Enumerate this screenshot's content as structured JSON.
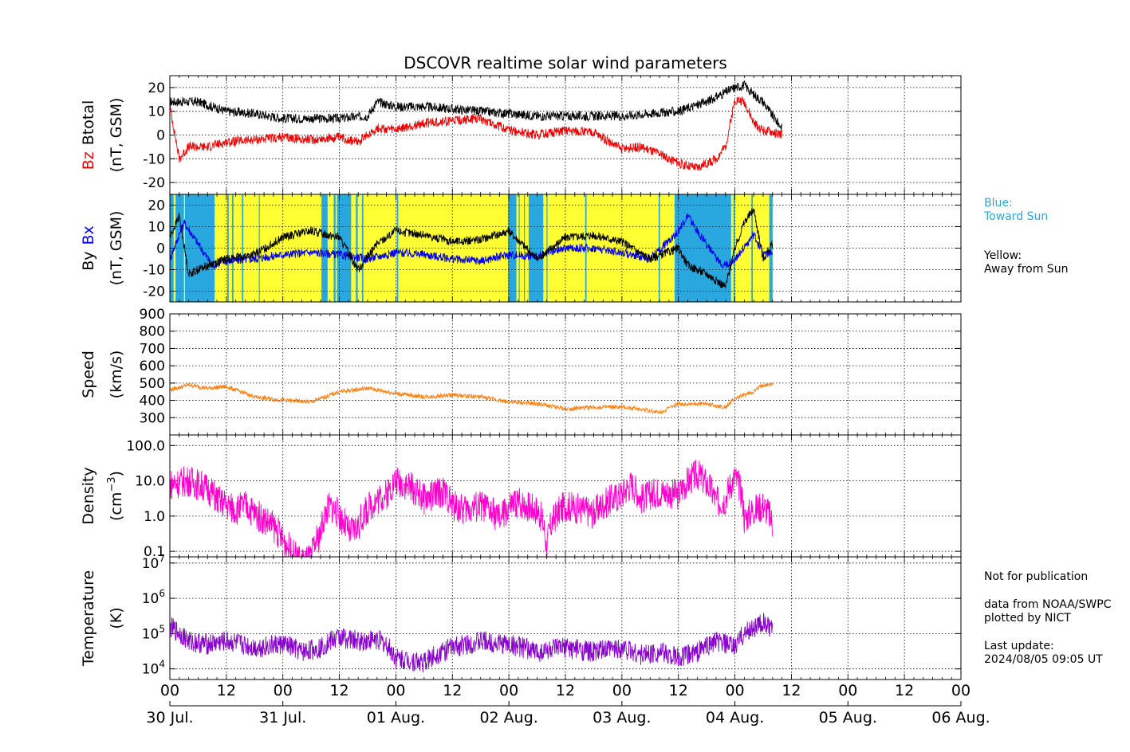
{
  "title": "DSCOVR realtime solar wind parameters",
  "x_axis": {
    "start": "2024-07-30T00:00Z",
    "end": "2024-08-06T00:00Z",
    "hour_labels": [
      "00",
      "12",
      "00",
      "12",
      "00",
      "12",
      "00",
      "12",
      "00",
      "12",
      "00",
      "12",
      "00",
      "12",
      "00"
    ],
    "date_labels": [
      "30 Jul.",
      "31 Jul.",
      "01 Aug.",
      "02 Aug.",
      "03 Aug.",
      "04 Aug.",
      "05 Aug.",
      "06 Aug."
    ]
  },
  "side_text": {
    "legend_blue": "Blue:\nToward Sun",
    "legend_yellow": "Yellow:\nAway from Sun",
    "note_publication": "Not for publication",
    "note_source": "data from NOAA/SWPC\nplotted by NICT",
    "note_update": "Last update:\n2024/08/05 09:05 UT"
  },
  "colors": {
    "bz": "#ee0000",
    "btotal": "#000000",
    "bx": "#0000ee",
    "by": "#000000",
    "speed": "#ff7f0e",
    "density": "#ff00cc",
    "temperature": "#8800cc",
    "toward_sun": "#29a8e0",
    "away_from_sun": "#ffff33"
  },
  "chart_data": [
    {
      "type": "line",
      "panel": "magnetic_field_total",
      "ylabel_parts": [
        "Bz",
        "Btotal",
        "(nT, GSM)"
      ],
      "ylim": [
        -25,
        25
      ],
      "yticks": [
        -20,
        -10,
        0,
        10,
        20
      ],
      "grid": true,
      "series": [
        {
          "name": "Btotal",
          "x_hours": [
            0,
            6,
            12,
            18,
            24,
            30,
            36,
            42,
            44,
            48,
            54,
            60,
            66,
            72,
            78,
            84,
            90,
            96,
            102,
            108,
            114,
            118,
            120,
            122,
            124,
            126,
            128,
            130
          ],
          "values": [
            14,
            14,
            10,
            9,
            7,
            7,
            7,
            8,
            14,
            12,
            12,
            11,
            10,
            9,
            8,
            8,
            8,
            8,
            9,
            10,
            14,
            18,
            20,
            21,
            17,
            14,
            8,
            3
          ]
        },
        {
          "name": "Bz",
          "x_hours": [
            0,
            2,
            4,
            8,
            12,
            18,
            24,
            30,
            36,
            40,
            44,
            48,
            54,
            60,
            66,
            72,
            78,
            84,
            90,
            96,
            100,
            104,
            108,
            112,
            116,
            118,
            120,
            122,
            124,
            126,
            130
          ],
          "values": [
            12,
            -10,
            -5,
            -5,
            -3,
            -2,
            -1,
            -2,
            -1,
            -3,
            3,
            2,
            5,
            6,
            7,
            2,
            0,
            2,
            1,
            -6,
            -5,
            -8,
            -12,
            -14,
            -10,
            -5,
            15,
            14,
            5,
            2,
            0
          ]
        }
      ]
    },
    {
      "type": "line",
      "panel": "magnetic_field_components",
      "ylabel_parts": [
        "By",
        "Bx",
        "(nT, GSM)"
      ],
      "ylim": [
        -25,
        25
      ],
      "yticks": [
        -20,
        -10,
        0,
        10,
        20
      ],
      "grid": true,
      "sector_background": {
        "toward_sun_intervals_hours": [
          [
            0,
            0.8
          ],
          [
            1.2,
            3
          ],
          [
            3.2,
            9.5
          ],
          [
            12.2,
            12.5
          ],
          [
            13.2,
            13.5
          ],
          [
            15.3,
            15.6
          ],
          [
            18.9,
            19.1
          ],
          [
            32.2,
            33.5
          ],
          [
            34.8,
            35.2
          ],
          [
            35.5,
            38.5
          ],
          [
            39.5,
            39.9
          ],
          [
            40.8,
            41.1
          ],
          [
            48.2,
            48.5
          ],
          [
            71.8,
            73.6
          ],
          [
            74.1,
            74.3
          ],
          [
            75.2,
            75.4
          ],
          [
            76.2,
            79.3
          ],
          [
            80,
            80.2
          ],
          [
            88.2,
            88.5
          ],
          [
            103.8,
            104.1
          ],
          [
            107.2,
            119.2
          ],
          [
            119.7,
            120
          ],
          [
            123.5,
            123.8
          ],
          [
            127.3,
            128
          ]
        ],
        "data_end_hour": 128
      },
      "series": [
        {
          "name": "Bx",
          "x_hours": [
            0,
            3,
            6,
            9,
            12,
            18,
            24,
            30,
            36,
            42,
            48,
            54,
            60,
            66,
            72,
            78,
            84,
            90,
            96,
            102,
            108,
            110,
            112,
            114,
            116,
            118,
            120,
            124,
            126,
            128
          ],
          "values": [
            -5,
            12,
            2,
            -8,
            -6,
            -5,
            -3,
            -2,
            -3,
            -5,
            -2,
            -3,
            -5,
            -6,
            -3,
            -4,
            0,
            0,
            -2,
            -5,
            8,
            15,
            8,
            2,
            -5,
            -8,
            -5,
            6,
            -2,
            -3
          ]
        },
        {
          "name": "By",
          "x_hours": [
            0,
            2,
            4,
            8,
            12,
            18,
            24,
            30,
            36,
            40,
            44,
            48,
            54,
            60,
            66,
            72,
            78,
            84,
            90,
            96,
            102,
            108,
            110,
            114,
            118,
            120,
            122,
            124,
            126,
            128
          ],
          "values": [
            5,
            15,
            -12,
            -8,
            -5,
            -3,
            5,
            8,
            5,
            -10,
            2,
            8,
            6,
            3,
            4,
            8,
            -5,
            5,
            6,
            3,
            -5,
            0,
            -8,
            -12,
            -18,
            0,
            12,
            18,
            -5,
            2
          ]
        }
      ]
    },
    {
      "type": "line",
      "panel": "speed",
      "ylabel_parts": [
        "Speed",
        "(km/s)"
      ],
      "ylim": [
        200,
        900
      ],
      "yticks": [
        300,
        400,
        500,
        600,
        700,
        800,
        900
      ],
      "grid": true,
      "series": [
        {
          "name": "Speed",
          "x_hours": [
            0,
            4,
            8,
            12,
            18,
            24,
            30,
            36,
            42,
            48,
            54,
            60,
            66,
            72,
            78,
            84,
            90,
            96,
            100,
            104,
            108,
            114,
            118,
            120,
            122,
            124,
            126,
            128
          ],
          "values": [
            460,
            490,
            470,
            480,
            420,
            400,
            390,
            450,
            470,
            440,
            420,
            430,
            420,
            390,
            380,
            350,
            360,
            360,
            350,
            330,
            380,
            380,
            360,
            410,
            430,
            450,
            490,
            490
          ]
        }
      ]
    },
    {
      "type": "line",
      "panel": "density",
      "ylabel_parts": [
        "Density",
        "(cm",
        "−3",
        ")"
      ],
      "ylim": [
        0.07,
        200
      ],
      "yscale": "log",
      "yticks": [
        0.1,
        1.0,
        10.0,
        100.0
      ],
      "ytick_labels": [
        "0.1",
        "1.0",
        "10.0",
        "100.0"
      ],
      "grid": true,
      "series": [
        {
          "name": "Density",
          "x_hours": [
            0,
            4,
            8,
            10,
            12,
            14,
            16,
            18,
            20,
            22,
            24,
            26,
            28,
            30,
            32,
            34,
            36,
            38,
            40,
            42,
            44,
            46,
            48,
            50,
            54,
            58,
            60,
            62,
            66,
            70,
            74,
            78,
            80,
            84,
            90,
            96,
            98,
            100,
            104,
            108,
            112,
            114,
            116,
            118,
            120,
            122,
            124,
            126,
            128
          ],
          "values": [
            8,
            10,
            6,
            3,
            2,
            1.5,
            2,
            1.2,
            0.8,
            0.5,
            0.2,
            0.08,
            0.05,
            0.06,
            0.3,
            2,
            1,
            0.3,
            0.5,
            1.5,
            3,
            4,
            10,
            8,
            3,
            5,
            2,
            1.5,
            2,
            0.8,
            2.5,
            1.5,
            0.08,
            2,
            1.2,
            4,
            8,
            3,
            5,
            4,
            15,
            8,
            2.5,
            3,
            12,
            0.8,
            1.5,
            2,
            0.6
          ]
        }
      ]
    },
    {
      "type": "line",
      "panel": "temperature",
      "ylabel_parts": [
        "Temperature",
        "(K)"
      ],
      "ylim": [
        5000,
        15000000
      ],
      "yscale": "log",
      "yticks": [
        10000,
        100000,
        1000000,
        10000000
      ],
      "ytick_labels": [
        {
          "base": "10",
          "exp": "4"
        },
        {
          "base": "10",
          "exp": "5"
        },
        {
          "base": "10",
          "exp": "6"
        },
        {
          "base": "10",
          "exp": "7"
        }
      ],
      "grid": true,
      "series": [
        {
          "name": "Temperature",
          "x_hours": [
            0,
            4,
            8,
            12,
            18,
            24,
            28,
            32,
            36,
            40,
            44,
            48,
            54,
            60,
            66,
            72,
            78,
            84,
            90,
            96,
            100,
            104,
            108,
            112,
            116,
            120,
            122,
            124,
            126,
            128
          ],
          "values": [
            150000,
            60000,
            50000,
            60000,
            40000,
            50000,
            30000,
            40000,
            80000,
            60000,
            70000,
            20000,
            15000,
            40000,
            60000,
            50000,
            30000,
            40000,
            30000,
            40000,
            25000,
            30000,
            20000,
            30000,
            60000,
            40000,
            100000,
            150000,
            200000,
            120000
          ]
        }
      ]
    }
  ]
}
